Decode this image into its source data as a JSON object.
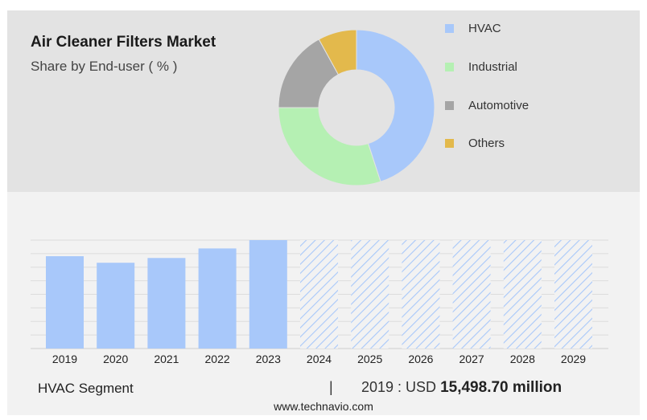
{
  "header": {
    "title": "Air Cleaner Filters Market",
    "subtitle": "Share by End-user ( % )"
  },
  "colors": {
    "hvac": "#a8c8fa",
    "industrial": "#b5f0b3",
    "automotive": "#a5a5a5",
    "others": "#e3b94c",
    "forecast_hatch": "#a8c8fa"
  },
  "chart_data": [
    {
      "type": "pie",
      "donut": true,
      "title": "Air Cleaner Filters Market",
      "subtitle": "Share by End-user ( % )",
      "legend_position": "right",
      "series": [
        {
          "name": "HVAC",
          "value": 45,
          "color": "#a8c8fa"
        },
        {
          "name": "Industrial",
          "value": 30,
          "color": "#b5f0b3"
        },
        {
          "name": "Automotive",
          "value": 17,
          "color": "#a5a5a5"
        },
        {
          "name": "Others",
          "value": 8,
          "color": "#e3b94c"
        }
      ]
    },
    {
      "type": "bar",
      "categories": [
        "2019",
        "2020",
        "2021",
        "2022",
        "2023",
        "2024",
        "2025",
        "2026",
        "2027",
        "2028",
        "2029"
      ],
      "values": [
        15498.7,
        14400,
        15200,
        16800,
        18200,
        null,
        null,
        null,
        null,
        null,
        null
      ],
      "forecast_categories": [
        "2024",
        "2025",
        "2026",
        "2027",
        "2028",
        "2029"
      ],
      "ylim": [
        0,
        18200
      ],
      "grid": true,
      "yaxis_labels_shown": false
    }
  ],
  "bottom": {
    "segment_label": "HVAC Segment",
    "divider": "|",
    "stat_prefix": "2019 : USD",
    "stat_value": "15,498.70 million"
  },
  "footer": {
    "text": "www.technavio.com"
  }
}
